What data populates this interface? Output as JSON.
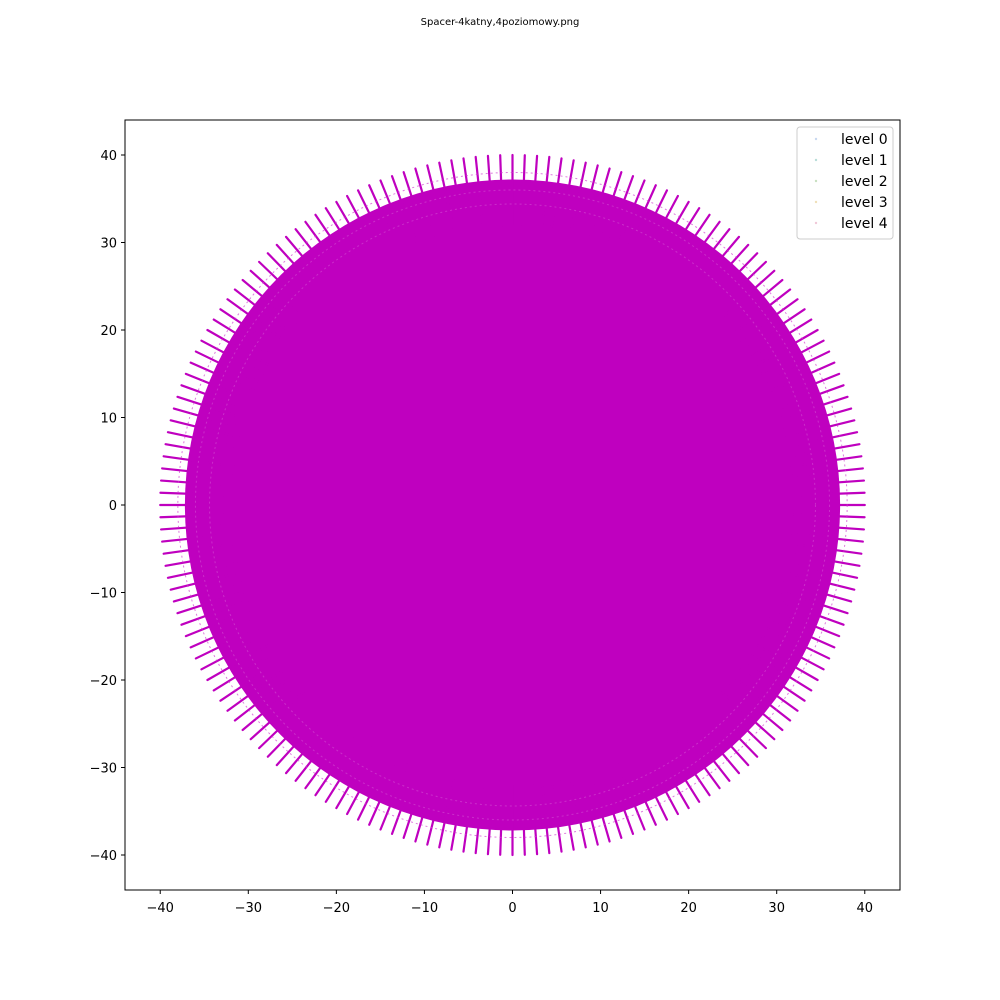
{
  "chart_data": {
    "type": "scatter",
    "title": "Spacer-4katny,4poziomowy.png",
    "xlabel": "",
    "ylabel": "",
    "xlim": [
      -44,
      44
    ],
    "ylim": [
      -44,
      44
    ],
    "xticks": [
      -40,
      -30,
      -20,
      -10,
      0,
      10,
      20,
      30,
      40
    ],
    "yticks": [
      -40,
      -30,
      -20,
      -10,
      0,
      10,
      20,
      30,
      40
    ],
    "grid": false,
    "legend_position": "top-right",
    "pattern": {
      "center": [
        0,
        0
      ],
      "radius": 40,
      "angular_step_deg": 4,
      "spoke_count": 90,
      "description_of_shape": "dense radial spacer walk filling a disc"
    },
    "series": [
      {
        "name": "level 0",
        "color": "#c8d8f0"
      },
      {
        "name": "level 1",
        "color": "#b8ddd8"
      },
      {
        "name": "level 2",
        "color": "#c8e0c0"
      },
      {
        "name": "level 3",
        "color": "#f0e0b8"
      },
      {
        "name": "level 4",
        "color": "#f0c8d8"
      }
    ],
    "fill_color": "#bf00bf"
  }
}
